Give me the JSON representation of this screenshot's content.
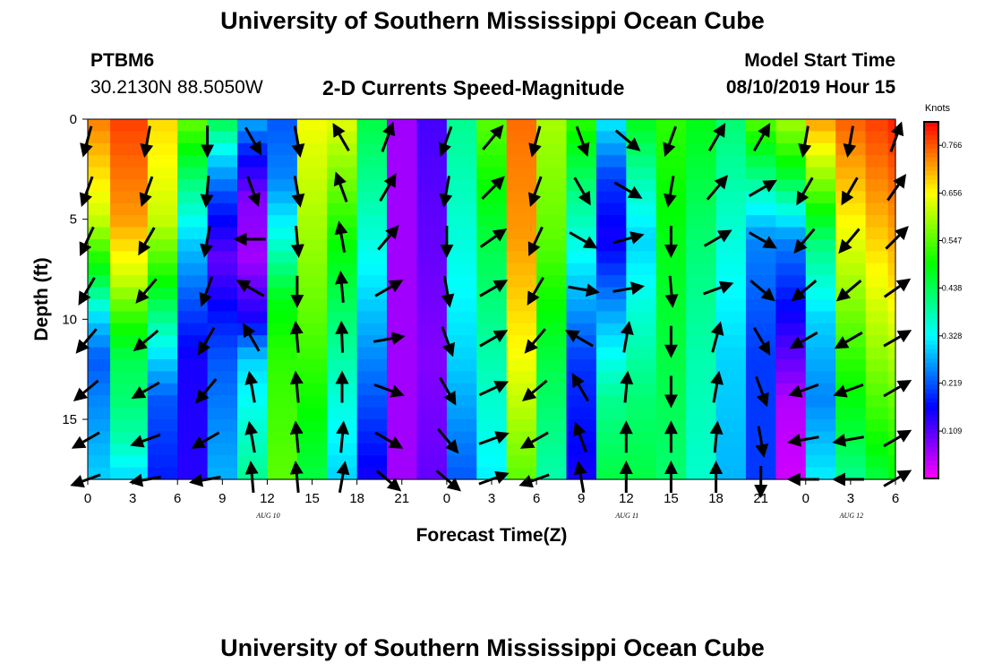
{
  "header": {
    "title_top": "University of Southern Mississippi Ocean Cube",
    "title_bottom": "University of Southern Mississippi Ocean Cube",
    "station": "PTBM6",
    "coords": "30.2130N 88.5050W",
    "chart_title": "2-D Currents Speed-Magnitude",
    "model_label": "Model Start Time",
    "model_time": "08/10/2019 Hour 15"
  },
  "chart_data": {
    "type": "heatmap",
    "title": "2-D Currents Speed-Magnitude",
    "xlabel": "Forecast Time(Z)",
    "ylabel": "Depth (ft)",
    "x_tick_labels": [
      "0",
      "3",
      "6",
      "9",
      "12",
      "15",
      "18",
      "21",
      "0",
      "3",
      "6",
      "9",
      "12",
      "15",
      "18",
      "21",
      "0",
      "3",
      "6"
    ],
    "x_range_hours": [
      0,
      54
    ],
    "date_labels": [
      {
        "label": "AUG 10",
        "hour": 12
      },
      {
        "label": "AUG 11",
        "hour": 36
      },
      {
        "label": "AUG 12",
        "hour": 51
      }
    ],
    "y_ticks": [
      0,
      5,
      10,
      15
    ],
    "y_range_ft": [
      0,
      18
    ],
    "y_inverted": true,
    "colorbar": {
      "unit": "Knots",
      "ticks": [
        0.109,
        0.219,
        0.328,
        0.438,
        0.547,
        0.656,
        0.766
      ],
      "range": [
        0.0,
        0.82
      ]
    },
    "columns": [
      {
        "hour": 0,
        "profile": [
          [
            0,
            0.74
          ],
          [
            5,
            0.62
          ],
          [
            8,
            0.45
          ],
          [
            10,
            0.3
          ],
          [
            12,
            0.22
          ],
          [
            14,
            0.25
          ],
          [
            18,
            0.3
          ]
        ]
      },
      {
        "hour": 3,
        "profile": [
          [
            0,
            0.78
          ],
          [
            5,
            0.72
          ],
          [
            8,
            0.62
          ],
          [
            10,
            0.52
          ],
          [
            12,
            0.44
          ],
          [
            14,
            0.42
          ],
          [
            16,
            0.38
          ],
          [
            18,
            0.3
          ]
        ]
      },
      {
        "hour": 5,
        "profile": [
          [
            0,
            0.68
          ],
          [
            5,
            0.62
          ],
          [
            8,
            0.5
          ],
          [
            10,
            0.4
          ],
          [
            12,
            0.3
          ],
          [
            14,
            0.22
          ],
          [
            18,
            0.18
          ]
        ]
      },
      {
        "hour": 7,
        "profile": [
          [
            0,
            0.56
          ],
          [
            3,
            0.42
          ],
          [
            6,
            0.3
          ],
          [
            9,
            0.22
          ],
          [
            12,
            0.15
          ],
          [
            18,
            0.14
          ]
        ]
      },
      {
        "hour": 9,
        "profile": [
          [
            0,
            0.45
          ],
          [
            2,
            0.3
          ],
          [
            4,
            0.2
          ],
          [
            7,
            0.1
          ],
          [
            10,
            0.18
          ],
          [
            12,
            0.22
          ],
          [
            18,
            0.28
          ]
        ]
      },
      {
        "hour": 11,
        "profile": [
          [
            0,
            0.28
          ],
          [
            2,
            0.16
          ],
          [
            4,
            0.08
          ],
          [
            7,
            0.06
          ],
          [
            10,
            0.15
          ],
          [
            12,
            0.3
          ],
          [
            18,
            0.4
          ]
        ]
      },
      {
        "hour": 13,
        "profile": [
          [
            0,
            0.22
          ],
          [
            3,
            0.25
          ],
          [
            6,
            0.35
          ],
          [
            9,
            0.48
          ],
          [
            12,
            0.52
          ],
          [
            18,
            0.55
          ]
        ]
      },
      {
        "hour": 15,
        "profile": [
          [
            0,
            0.65
          ],
          [
            5,
            0.6
          ],
          [
            10,
            0.55
          ],
          [
            14,
            0.5
          ],
          [
            18,
            0.45
          ]
        ]
      },
      {
        "hour": 17,
        "profile": [
          [
            0,
            0.64
          ],
          [
            5,
            0.52
          ],
          [
            10,
            0.42
          ],
          [
            14,
            0.35
          ],
          [
            18,
            0.3
          ]
        ]
      },
      {
        "hour": 19,
        "profile": [
          [
            0,
            0.45
          ],
          [
            6,
            0.35
          ],
          [
            12,
            0.25
          ],
          [
            18,
            0.15
          ]
        ]
      },
      {
        "hour": 21,
        "profile": [
          [
            0,
            0.06
          ],
          [
            6,
            0.06
          ],
          [
            12,
            0.06
          ],
          [
            18,
            0.06
          ]
        ]
      },
      {
        "hour": 23,
        "profile": [
          [
            0,
            0.12
          ],
          [
            6,
            0.1
          ],
          [
            12,
            0.08
          ],
          [
            18,
            0.1
          ]
        ]
      },
      {
        "hour": 25,
        "profile": [
          [
            0,
            0.4
          ],
          [
            6,
            0.35
          ],
          [
            12,
            0.3
          ],
          [
            18,
            0.22
          ]
        ]
      },
      {
        "hour": 27,
        "profile": [
          [
            0,
            0.55
          ],
          [
            6,
            0.45
          ],
          [
            12,
            0.38
          ],
          [
            18,
            0.32
          ]
        ]
      },
      {
        "hour": 29,
        "profile": [
          [
            0,
            0.75
          ],
          [
            6,
            0.72
          ],
          [
            12,
            0.65
          ],
          [
            15,
            0.6
          ],
          [
            18,
            0.55
          ]
        ]
      },
      {
        "hour": 31,
        "profile": [
          [
            0,
            0.6
          ],
          [
            6,
            0.55
          ],
          [
            12,
            0.45
          ],
          [
            18,
            0.38
          ]
        ]
      },
      {
        "hour": 33,
        "profile": [
          [
            0,
            0.52
          ],
          [
            4,
            0.4
          ],
          [
            8,
            0.3
          ],
          [
            12,
            0.2
          ],
          [
            18,
            0.15
          ]
        ]
      },
      {
        "hour": 35,
        "profile": [
          [
            0,
            0.32
          ],
          [
            3,
            0.2
          ],
          [
            6,
            0.15
          ],
          [
            10,
            0.28
          ],
          [
            14,
            0.4
          ],
          [
            18,
            0.45
          ]
        ]
      },
      {
        "hour": 37,
        "profile": [
          [
            0,
            0.48
          ],
          [
            3,
            0.38
          ],
          [
            6,
            0.3
          ],
          [
            10,
            0.36
          ],
          [
            14,
            0.42
          ],
          [
            18,
            0.45
          ]
        ]
      },
      {
        "hour": 39,
        "profile": [
          [
            0,
            0.52
          ],
          [
            6,
            0.48
          ],
          [
            12,
            0.45
          ],
          [
            18,
            0.42
          ]
        ]
      },
      {
        "hour": 41,
        "profile": [
          [
            0,
            0.48
          ],
          [
            6,
            0.42
          ],
          [
            12,
            0.38
          ],
          [
            18,
            0.36
          ]
        ]
      },
      {
        "hour": 43,
        "profile": [
          [
            0,
            0.42
          ],
          [
            6,
            0.35
          ],
          [
            12,
            0.3
          ],
          [
            18,
            0.28
          ]
        ]
      },
      {
        "hour": 45,
        "profile": [
          [
            0,
            0.55
          ],
          [
            3,
            0.4
          ],
          [
            6,
            0.25
          ],
          [
            12,
            0.2
          ],
          [
            18,
            0.2
          ]
        ]
      },
      {
        "hour": 47,
        "profile": [
          [
            0,
            0.6
          ],
          [
            3,
            0.45
          ],
          [
            6,
            0.25
          ],
          [
            10,
            0.15
          ],
          [
            14,
            0.05
          ],
          [
            18,
            0.03
          ]
        ]
      },
      {
        "hour": 49,
        "profile": [
          [
            0,
            0.72
          ],
          [
            3,
            0.58
          ],
          [
            6,
            0.42
          ],
          [
            10,
            0.3
          ],
          [
            14,
            0.25
          ],
          [
            18,
            0.32
          ]
        ]
      },
      {
        "hour": 51,
        "profile": [
          [
            0,
            0.76
          ],
          [
            4,
            0.68
          ],
          [
            8,
            0.6
          ],
          [
            12,
            0.52
          ],
          [
            16,
            0.45
          ],
          [
            18,
            0.4
          ]
        ]
      },
      {
        "hour": 53,
        "profile": [
          [
            0,
            0.78
          ],
          [
            4,
            0.72
          ],
          [
            8,
            0.65
          ],
          [
            12,
            0.58
          ],
          [
            16,
            0.5
          ],
          [
            18,
            0.45
          ]
        ]
      },
      {
        "hour": 54,
        "profile": [
          [
            0,
            0.8
          ],
          [
            4,
            0.74
          ],
          [
            8,
            0.68
          ],
          [
            12,
            0.6
          ],
          [
            16,
            0.52
          ],
          [
            18,
            0.48
          ]
        ]
      }
    ],
    "arrow_hours": [
      0,
      4,
      8,
      11,
      14,
      17,
      20,
      24,
      27,
      30,
      33,
      36,
      39,
      42,
      45,
      48,
      51,
      54
    ],
    "arrow_depths_ft": [
      1,
      3.5,
      6,
      8.5,
      11,
      13.5,
      16,
      18
    ],
    "arrow_direction_deg_by_column": [
      [
        195,
        200,
        205,
        210,
        220,
        230,
        240,
        250
      ],
      [
        190,
        200,
        210,
        220,
        230,
        240,
        250,
        260
      ],
      [
        180,
        185,
        190,
        200,
        210,
        220,
        240,
        260
      ],
      [
        150,
        160,
        270,
        300,
        330,
        350,
        350,
        355
      ],
      [
        170,
        170,
        175,
        180,
        355,
        355,
        355,
        355
      ],
      [
        330,
        340,
        350,
        355,
        358,
        0,
        5,
        10
      ],
      [
        20,
        30,
        40,
        60,
        80,
        110,
        120,
        130
      ],
      [
        200,
        190,
        180,
        170,
        160,
        150,
        140,
        130
      ],
      [
        40,
        45,
        55,
        60,
        60,
        65,
        70,
        70
      ],
      [
        195,
        200,
        205,
        210,
        220,
        230,
        240,
        250
      ],
      [
        160,
        150,
        120,
        100,
        300,
        330,
        340,
        350
      ],
      [
        130,
        120,
        75,
        80,
        10,
        5,
        0,
        0
      ],
      [
        200,
        190,
        180,
        175,
        180,
        180,
        0,
        0
      ],
      [
        30,
        40,
        60,
        70,
        15,
        10,
        5,
        0
      ],
      [
        30,
        60,
        120,
        130,
        150,
        160,
        170,
        180
      ],
      [
        190,
        210,
        220,
        230,
        240,
        250,
        260,
        270
      ],
      [
        190,
        210,
        220,
        230,
        240,
        250,
        260,
        270
      ],
      [
        20,
        35,
        45,
        55,
        60,
        60,
        60,
        60
      ]
    ]
  }
}
